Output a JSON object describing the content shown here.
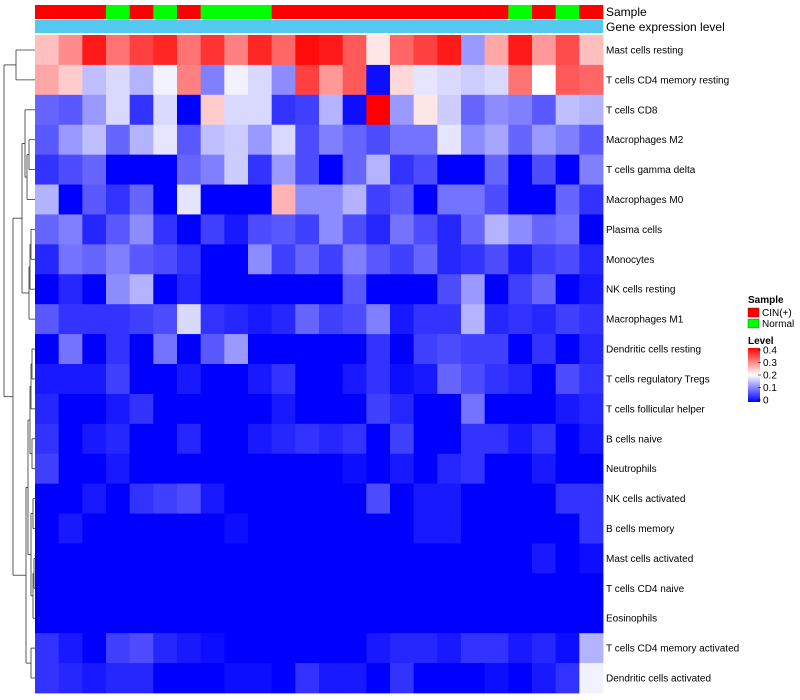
{
  "chart_data": {
    "type": "heatmap",
    "title": "",
    "annotation_tracks": [
      "Sample",
      "Gene expression level"
    ],
    "columns": 24,
    "sample_track": [
      "CIN(+)",
      "CIN(+)",
      "CIN(+)",
      "Normal",
      "CIN(+)",
      "Normal",
      "CIN(+)",
      "Normal",
      "Normal",
      "Normal",
      "CIN(+)",
      "CIN(+)",
      "CIN(+)",
      "CIN(+)",
      "CIN(+)",
      "CIN(+)",
      "CIN(+)",
      "CIN(+)",
      "CIN(+)",
      "CIN(+)",
      "Normal",
      "CIN(+)",
      "Normal",
      "CIN(+)"
    ],
    "rows": [
      "Mast cells resting",
      "T cells CD4 memory resting",
      "T cells CD8",
      "Macrophages M2",
      "T cells gamma delta",
      "Macrophages M0",
      "Plasma cells",
      "Monocytes",
      "NK cells resting",
      "Macrophages M1",
      "Dendritic cells resting",
      "T cells regulatory  Tregs",
      "T cells follicular helper",
      "B cells naive",
      "Neutrophils",
      "NK cells activated",
      "B cells memory",
      "Mast cells activated",
      "T cells CD4 naive",
      "Eosinophils",
      "T cells CD4 memory activated",
      "Dendritic cells activated"
    ],
    "values": [
      [
        0.25,
        0.29,
        0.38,
        0.31,
        0.35,
        0.37,
        0.31,
        0.36,
        0.3,
        0.37,
        0.32,
        0.39,
        0.38,
        0.33,
        0.22,
        0.32,
        0.35,
        0.38,
        0.12,
        0.27,
        0.38,
        0.28,
        0.34,
        0.25
      ],
      [
        0.27,
        0.24,
        0.15,
        0.17,
        0.14,
        0.19,
        0.3,
        0.1,
        0.19,
        0.17,
        0.11,
        0.35,
        0.28,
        0.33,
        0.01,
        0.23,
        0.18,
        0.17,
        0.16,
        0.17,
        0.31,
        0.2,
        0.33,
        0.32
      ],
      [
        0.08,
        0.07,
        0.12,
        0.17,
        0.04,
        0.17,
        0.0,
        0.24,
        0.17,
        0.17,
        0.04,
        0.05,
        0.14,
        0.01,
        0.4,
        0.12,
        0.22,
        0.16,
        0.08,
        0.11,
        0.1,
        0.07,
        0.15,
        0.14
      ],
      [
        0.07,
        0.12,
        0.15,
        0.08,
        0.14,
        0.18,
        0.07,
        0.15,
        0.16,
        0.12,
        0.17,
        0.06,
        0.1,
        0.08,
        0.06,
        0.09,
        0.09,
        0.18,
        0.11,
        0.13,
        0.08,
        0.12,
        0.1,
        0.07
      ],
      [
        0.04,
        0.06,
        0.08,
        0.0,
        0.0,
        0.0,
        0.08,
        0.1,
        0.16,
        0.04,
        0.12,
        0.06,
        0.0,
        0.08,
        0.14,
        0.04,
        0.06,
        0.0,
        0.0,
        0.08,
        0.0,
        0.06,
        0.0,
        0.1
      ],
      [
        0.14,
        0.0,
        0.07,
        0.04,
        0.08,
        0.0,
        0.18,
        0.0,
        0.0,
        0.0,
        0.26,
        0.11,
        0.11,
        0.14,
        0.05,
        0.07,
        0.0,
        0.09,
        0.09,
        0.06,
        0.0,
        0.0,
        0.08,
        0.04
      ],
      [
        0.08,
        0.1,
        0.03,
        0.07,
        0.11,
        0.04,
        0.0,
        0.05,
        0.02,
        0.06,
        0.07,
        0.05,
        0.11,
        0.06,
        0.03,
        0.09,
        0.06,
        0.03,
        0.08,
        0.14,
        0.11,
        0.08,
        0.09,
        0.0
      ],
      [
        0.03,
        0.09,
        0.08,
        0.1,
        0.07,
        0.06,
        0.04,
        0.0,
        0.0,
        0.11,
        0.05,
        0.08,
        0.05,
        0.1,
        0.07,
        0.05,
        0.08,
        0.03,
        0.04,
        0.06,
        0.02,
        0.05,
        0.06,
        0.03
      ],
      [
        0.0,
        0.03,
        0.0,
        0.11,
        0.14,
        0.0,
        0.03,
        0.0,
        0.0,
        0.0,
        0.0,
        0.0,
        0.0,
        0.07,
        0.0,
        0.0,
        0.0,
        0.06,
        0.12,
        0.0,
        0.05,
        0.08,
        0.0,
        0.02
      ],
      [
        0.07,
        0.04,
        0.04,
        0.04,
        0.05,
        0.06,
        0.17,
        0.04,
        0.03,
        0.02,
        0.03,
        0.08,
        0.05,
        0.06,
        0.1,
        0.02,
        0.04,
        0.04,
        0.14,
        0.03,
        0.04,
        0.03,
        0.05,
        0.04
      ],
      [
        0.0,
        0.09,
        0.0,
        0.04,
        0.0,
        0.09,
        0.0,
        0.07,
        0.12,
        0.0,
        0.0,
        0.0,
        0.0,
        0.0,
        0.04,
        0.0,
        0.05,
        0.06,
        0.05,
        0.05,
        0.0,
        0.04,
        0.0,
        0.03
      ],
      [
        0.02,
        0.02,
        0.02,
        0.05,
        0.0,
        0.0,
        0.02,
        0.0,
        0.0,
        0.02,
        0.04,
        0.0,
        0.0,
        0.02,
        0.04,
        0.01,
        0.02,
        0.08,
        0.06,
        0.04,
        0.03,
        0.0,
        0.06,
        0.04
      ],
      [
        0.03,
        0.0,
        0.0,
        0.02,
        0.04,
        0.0,
        0.0,
        0.0,
        0.0,
        0.0,
        0.02,
        0.0,
        0.0,
        0.0,
        0.05,
        0.03,
        0.0,
        0.0,
        0.09,
        0.0,
        0.0,
        0.0,
        0.02,
        0.03
      ],
      [
        0.04,
        0.0,
        0.02,
        0.03,
        0.0,
        0.0,
        0.03,
        0.0,
        0.0,
        0.02,
        0.03,
        0.04,
        0.03,
        0.04,
        0.0,
        0.05,
        0.0,
        0.0,
        0.04,
        0.04,
        0.02,
        0.04,
        0.0,
        0.02
      ],
      [
        0.05,
        0.0,
        0.0,
        0.02,
        0.0,
        0.0,
        0.0,
        0.0,
        0.0,
        0.0,
        0.0,
        0.0,
        0.0,
        0.01,
        0.0,
        0.02,
        0.0,
        0.03,
        0.04,
        0.0,
        0.0,
        0.02,
        0.0,
        0.0
      ],
      [
        0.0,
        0.0,
        0.02,
        0.0,
        0.04,
        0.05,
        0.06,
        0.02,
        0.0,
        0.0,
        0.0,
        0.0,
        0.0,
        0.0,
        0.06,
        0.0,
        0.02,
        0.02,
        0.0,
        0.0,
        0.0,
        0.0,
        0.04,
        0.04
      ],
      [
        0.0,
        0.02,
        0.0,
        0.0,
        0.0,
        0.0,
        0.0,
        0.0,
        0.01,
        0.0,
        0.0,
        0.0,
        0.0,
        0.0,
        0.0,
        0.0,
        0.02,
        0.02,
        0.0,
        0.0,
        0.0,
        0.0,
        0.0,
        0.04
      ],
      [
        0.0,
        0.0,
        0.0,
        0.0,
        0.0,
        0.0,
        0.0,
        0.0,
        0.0,
        0.0,
        0.0,
        0.0,
        0.0,
        0.0,
        0.0,
        0.0,
        0.0,
        0.0,
        0.0,
        0.0,
        0.0,
        0.02,
        0.0,
        0.01
      ],
      [
        0.0,
        0.0,
        0.0,
        0.0,
        0.0,
        0.0,
        0.0,
        0.0,
        0.0,
        0.0,
        0.0,
        0.0,
        0.0,
        0.0,
        0.0,
        0.0,
        0.0,
        0.0,
        0.0,
        0.0,
        0.0,
        0.0,
        0.0,
        0.0
      ],
      [
        0.0,
        0.0,
        0.0,
        0.0,
        0.0,
        0.0,
        0.0,
        0.0,
        0.0,
        0.0,
        0.0,
        0.0,
        0.0,
        0.0,
        0.0,
        0.0,
        0.0,
        0.0,
        0.0,
        0.0,
        0.0,
        0.0,
        0.0,
        0.0
      ],
      [
        0.04,
        0.02,
        0.0,
        0.05,
        0.06,
        0.03,
        0.02,
        0.01,
        0.0,
        0.0,
        0.0,
        0.0,
        0.0,
        0.0,
        0.02,
        0.03,
        0.03,
        0.02,
        0.04,
        0.04,
        0.02,
        0.03,
        0.01,
        0.14
      ],
      [
        0.04,
        0.03,
        0.02,
        0.03,
        0.03,
        0.0,
        0.0,
        0.0,
        0.01,
        0.01,
        0.0,
        0.04,
        0.02,
        0.02,
        0.0,
        0.04,
        0.0,
        0.0,
        0.0,
        0.01,
        0.0,
        0.02,
        0.04,
        0.19
      ]
    ],
    "scale": {
      "min": 0,
      "max": 0.4,
      "low_color": "#0000ff",
      "mid_color": "#ffffff",
      "high_color": "#ff0000",
      "mid_value": 0.2
    },
    "legend_sample": {
      "title": "Sample",
      "entries": [
        {
          "label": "CIN(+)",
          "color": "#ff0000"
        },
        {
          "label": "Normal",
          "color": "#00ff00"
        }
      ]
    },
    "legend_level": {
      "title": "Level",
      "ticks": [
        "0.4",
        "0.3",
        "0.2",
        "0.1",
        "0"
      ]
    },
    "gene_expression_track_color": "#55c8ef",
    "dendrogram": "row clustering (left side)"
  }
}
